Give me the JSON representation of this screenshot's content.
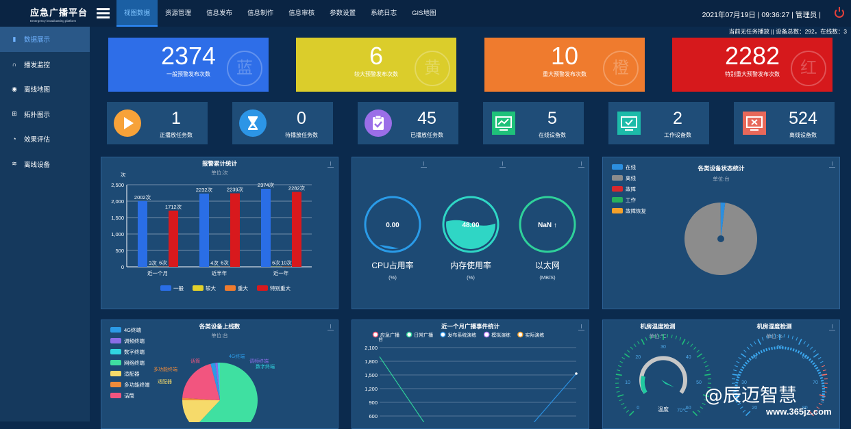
{
  "app": {
    "title": "应急广播平台",
    "subtitle": "Emergency broadcasting platform"
  },
  "nav": [
    "视图数据",
    "资源管理",
    "信息发布",
    "信息制作",
    "信息审核",
    "参数设置",
    "系统日志",
    "GIS地图"
  ],
  "header": {
    "date": "2021年07月19日",
    "time": "09:36:27",
    "user": "管理员"
  },
  "sidebar": [
    {
      "label": "数据展示",
      "icon": "bar-chart-icon"
    },
    {
      "label": "播发监控",
      "icon": "headset-icon"
    },
    {
      "label": "离线地图",
      "icon": "map-pin-icon"
    },
    {
      "label": "拓扑图示",
      "icon": "topology-icon"
    },
    {
      "label": "效果评估",
      "icon": "pie-icon"
    },
    {
      "label": "离线设备",
      "icon": "database-icon"
    }
  ],
  "status_line": "当前无任务播放 || 设备总数：292，在线数：3",
  "big_cards": [
    {
      "value": "2374",
      "label": "一般预警发布次数",
      "seal": "蓝",
      "color": "#2e6ee8"
    },
    {
      "value": "6",
      "label": "较大预警发布次数",
      "seal": "黄",
      "color": "#dbcd2b"
    },
    {
      "value": "10",
      "label": "重大预警发布次数",
      "seal": "橙",
      "color": "#ef7b2e"
    },
    {
      "value": "2282",
      "label": "特别重大预警发布次数",
      "seal": "红",
      "color": "#d6191c"
    }
  ],
  "small_cards": [
    {
      "value": "1",
      "label": "正播放任务数",
      "icon": "play-icon",
      "color": "#f7a239"
    },
    {
      "value": "0",
      "label": "待播放任务数",
      "icon": "hourglass-icon",
      "color": "#2c95e6"
    },
    {
      "value": "45",
      "label": "已播放任务数",
      "icon": "clipboard-check-icon",
      "color": "#9b6ee8"
    },
    {
      "value": "5",
      "label": "在线设备数",
      "icon": "monitor-line-icon",
      "color": "#1fc17a"
    },
    {
      "value": "2",
      "label": "工作设备数",
      "icon": "monitor-check-icon",
      "color": "#1dbba9"
    },
    {
      "value": "524",
      "label": "离线设备数",
      "icon": "monitor-x-icon",
      "color": "#e8685a"
    }
  ],
  "gauges": [
    {
      "value": "0.00",
      "label": "CPU占用率",
      "unit": "(%)",
      "level": 0.02
    },
    {
      "value": "48.00",
      "label": "内存使用率",
      "unit": "(%)",
      "level": 0.48
    },
    {
      "value": "NaN ↑",
      "label": "以太网",
      "unit": "(MB/S)",
      "level": 0
    }
  ],
  "device_status": {
    "title": "各类设备状态统计",
    "unit": "单位:台",
    "legend": [
      {
        "name": "在线",
        "color": "#2c8fdf"
      },
      {
        "name": "离线",
        "color": "#8c8c8c"
      },
      {
        "name": "故障",
        "color": "#d9282d"
      },
      {
        "name": "工作",
        "color": "#27b15c"
      },
      {
        "name": "故障恢复",
        "color": "#f5a12a"
      }
    ]
  },
  "online_pie": {
    "title": "各类设备上线数",
    "unit": "单位:台",
    "legend": [
      {
        "name": "4G终端",
        "color": "#2c9be6"
      },
      {
        "name": "调频终端",
        "color": "#8b6ee8"
      },
      {
        "name": "数字终端",
        "color": "#31d6e0"
      },
      {
        "name": "网络终端",
        "color": "#3fe0a1"
      },
      {
        "name": "适配器",
        "color": "#f6da6a"
      },
      {
        "name": "多功能终端",
        "color": "#f08b3a"
      },
      {
        "name": "话筒",
        "color": "#f2557f"
      }
    ]
  },
  "env": {
    "temp_title": "机房温度检测",
    "temp_unit": "单位:℃",
    "temp_label": "温度",
    "temp_tick": "70℃",
    "hum_title": "机房湿度检测",
    "hum_unit": "单位:%",
    "ticks": [
      "0",
      "10",
      "20",
      "30",
      "40",
      "50",
      "60"
    ],
    "hum_ticks": [
      "20",
      "30",
      "40",
      "50",
      "60",
      "70",
      "80"
    ]
  },
  "watermark": {
    "text": "@辰迈智慧",
    "site": "www.365jz.com"
  },
  "chart_data": [
    {
      "type": "bar",
      "title": "报警累计统计",
      "subtitle": "单位:次",
      "ylabel": "次",
      "categories": [
        "近一个月",
        "近半年",
        "近一年"
      ],
      "series": [
        {
          "name": "一般",
          "color": "#2a6ee6",
          "values": [
            2002,
            2232,
            2374
          ],
          "labels": [
            "2002次",
            "2232次",
            "2374次"
          ]
        },
        {
          "name": "较大",
          "color": "#e3d12a",
          "values": [
            3,
            4,
            6
          ],
          "labels": [
            "3次",
            "4次",
            "6次"
          ]
        },
        {
          "name": "重大",
          "color": "#ef7b2e",
          "values": [
            6,
            6,
            10
          ],
          "labels": [
            "6次",
            "6次",
            "10次"
          ]
        },
        {
          "name": "特别重大",
          "color": "#d8191d",
          "values": [
            1712,
            2239,
            2282
          ],
          "labels": [
            "1712次",
            "2239次",
            "2282次"
          ]
        }
      ],
      "ylim": [
        0,
        2500
      ],
      "yticks": [
        "0",
        "500",
        "1,000",
        "1,500",
        "2,000",
        "2,500"
      ]
    },
    {
      "type": "pie",
      "title": "各类设备状态统计",
      "slices": [
        {
          "name": "离线",
          "value": 98,
          "color": "#8c8c8c"
        },
        {
          "name": "在线",
          "value": 2,
          "color": "#2c8fdf"
        }
      ]
    },
    {
      "type": "pie",
      "title": "各类设备上线数",
      "slices": [
        {
          "name": "网络终端",
          "value": 62,
          "color": "#3fe0a1"
        },
        {
          "name": "适配器",
          "value": 13,
          "color": "#f6da6a"
        },
        {
          "name": "多功能终端",
          "value": 1,
          "color": "#f08b3a"
        },
        {
          "name": "话筒",
          "value": 20,
          "color": "#f2557f"
        },
        {
          "name": "4G终端",
          "value": 2,
          "color": "#2c9be6"
        },
        {
          "name": "调频终端",
          "value": 1,
          "color": "#8b6ee8"
        },
        {
          "name": "数字终端",
          "value": 1,
          "color": "#31d6e0"
        }
      ]
    },
    {
      "type": "line",
      "title": "近一个月广播事件统计",
      "ylabel": "台",
      "legend": [
        "应急广播",
        "日常广播",
        "发布系统演练",
        "模拟演练",
        "实际演练"
      ],
      "yticks": [
        "600",
        "900",
        "1,200",
        "1,500",
        "1,800",
        "2,100"
      ],
      "ylim": [
        600,
        2100
      ],
      "series": [
        {
          "name": "日常广播",
          "color": "#2fd19a",
          "start": 1900
        },
        {
          "name": "实际演练",
          "color": "#2a8fe0",
          "end": 1530
        }
      ]
    }
  ]
}
